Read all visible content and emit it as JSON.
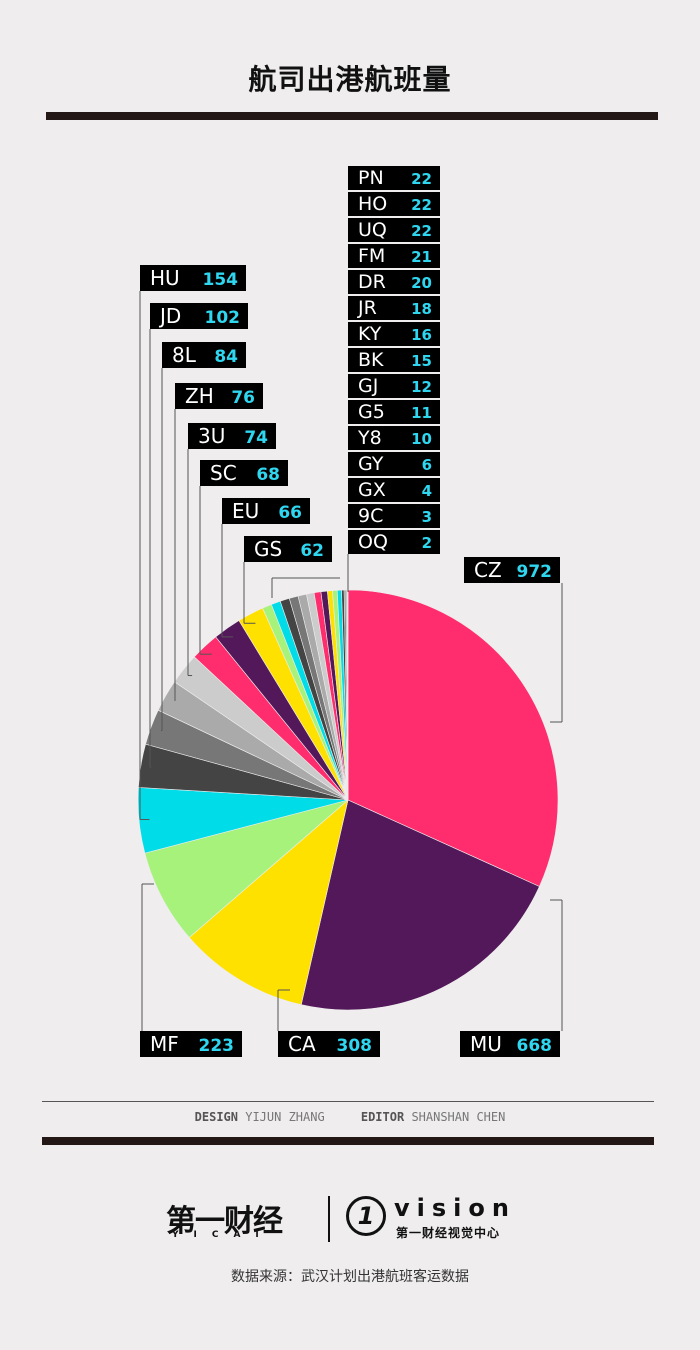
{
  "title": "航司出港航班量",
  "credits": {
    "design_label": "DESIGN",
    "design_name": "YIJUN ZHANG",
    "editor_label": "EDITOR",
    "editor_name": "SHANSHAN CHEN"
  },
  "logo": {
    "yicai_cn": "第一财经",
    "yicai_en": "YICAI",
    "vision_mark": "1",
    "vision": "vision",
    "vision_sub": "第一财经视觉中心"
  },
  "source": "数据来源：武汉计划出港航班客运数据",
  "colors": {
    "background": "#efedee",
    "label_box": "#000000",
    "label_value": "#2fd6f0"
  },
  "chart_data": {
    "type": "pie",
    "title": "航司出港航班量",
    "legend": "callout labels",
    "slices": [
      {
        "label": "CZ",
        "value": 972,
        "color": "#ff2d6e"
      },
      {
        "label": "MU",
        "value": 668,
        "color": "#53185a"
      },
      {
        "label": "CA",
        "value": 308,
        "color": "#ffe100"
      },
      {
        "label": "MF",
        "value": 223,
        "color": "#a6f27a"
      },
      {
        "label": "HU",
        "value": 154,
        "color": "#00dde8"
      },
      {
        "label": "JD",
        "value": 102,
        "color": "#444444"
      },
      {
        "label": "8L",
        "value": 84,
        "color": "#777777"
      },
      {
        "label": "ZH",
        "value": 76,
        "color": "#aaaaaa"
      },
      {
        "label": "3U",
        "value": 74,
        "color": "#cccccc"
      },
      {
        "label": "SC",
        "value": 68,
        "color": "#ff2d6e"
      },
      {
        "label": "EU",
        "value": 66,
        "color": "#53185a"
      },
      {
        "label": "GS",
        "value": 62,
        "color": "#ffe100"
      },
      {
        "label": "PN",
        "value": 22,
        "color": "#a6f27a"
      },
      {
        "label": "HO",
        "value": 22,
        "color": "#00dde8"
      },
      {
        "label": "UQ",
        "value": 22,
        "color": "#444444"
      },
      {
        "label": "FM",
        "value": 21,
        "color": "#777777"
      },
      {
        "label": "DR",
        "value": 20,
        "color": "#aaaaaa"
      },
      {
        "label": "JR",
        "value": 18,
        "color": "#cccccc"
      },
      {
        "label": "KY",
        "value": 16,
        "color": "#ff2d6e"
      },
      {
        "label": "BK",
        "value": 15,
        "color": "#53185a"
      },
      {
        "label": "GJ",
        "value": 12,
        "color": "#ffe100"
      },
      {
        "label": "G5",
        "value": 11,
        "color": "#a6f27a"
      },
      {
        "label": "Y8",
        "value": 10,
        "color": "#00dde8"
      },
      {
        "label": "GY",
        "value": 6,
        "color": "#444444"
      },
      {
        "label": "GX",
        "value": 4,
        "color": "#777777"
      },
      {
        "label": "9C",
        "value": 3,
        "color": "#aaaaaa"
      },
      {
        "label": "OQ",
        "value": 2,
        "color": "#cccccc"
      }
    ]
  }
}
